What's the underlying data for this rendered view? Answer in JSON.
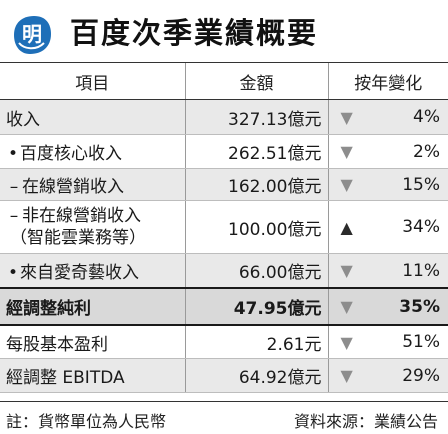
{
  "header": {
    "logo_text": "明",
    "title": "百度次季業績概要",
    "logo_color": "#1e6fb8"
  },
  "table": {
    "columns": [
      "項目",
      "金額",
      "按年變化"
    ],
    "rows": [
      {
        "label": "收入",
        "prefix": "",
        "amount": "327.13億元",
        "direction": "down",
        "change": "4%"
      },
      {
        "label": "百度核心收入",
        "prefix": "•",
        "amount": "262.51億元",
        "direction": "down",
        "change": "2%"
      },
      {
        "label": "在線營銷收入",
        "prefix": "–",
        "amount": "162.00億元",
        "direction": "down",
        "change": "15%"
      },
      {
        "label": "非在線營銷收入",
        "label2": "（智能雲業務等）",
        "prefix": "–",
        "amount": "100.00億元",
        "direction": "up",
        "change": "34%"
      },
      {
        "label": "來自愛奇藝收入",
        "prefix": "•",
        "amount": "66.00億元",
        "direction": "down",
        "change": "11%"
      },
      {
        "label": "經調整純利",
        "prefix": "",
        "amount": "47.95億元",
        "direction": "down",
        "change": "35%"
      },
      {
        "label": "每股基本盈利",
        "prefix": "",
        "amount": "2.61元",
        "direction": "down",
        "change": "51%"
      },
      {
        "label": "經調整 EBITDA",
        "prefix": "",
        "amount": "64.92億元",
        "direction": "down",
        "change": "29%"
      }
    ],
    "down_symbol": "▼",
    "up_symbol": "▲"
  },
  "footer": {
    "note": "註：貨幣單位為人民幣",
    "source": "資料來源：業績公告"
  }
}
